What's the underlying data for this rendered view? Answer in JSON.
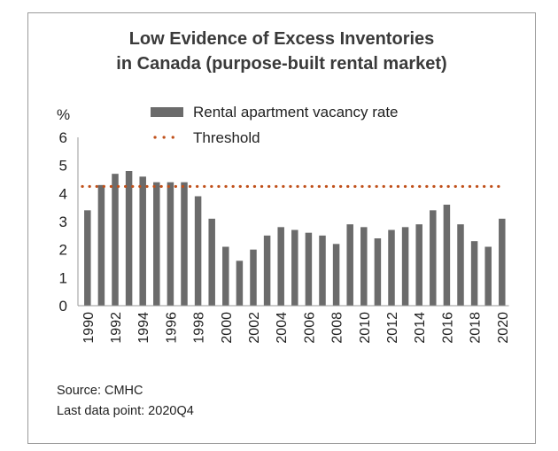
{
  "chart_data": {
    "type": "bar",
    "title": [
      "Low Evidence of Excess Inventories",
      "in Canada (purpose-built rental market)"
    ],
    "ylabel": "%",
    "ylim": [
      0,
      6
    ],
    "yticks": [
      "0",
      "1",
      "2",
      "3",
      "4",
      "5",
      "6"
    ],
    "grid": false,
    "legend_position": "top",
    "categories": [
      "1990",
      "1991",
      "1992",
      "1993",
      "1994",
      "1995",
      "1996",
      "1997",
      "1998",
      "1999",
      "2000",
      "2001",
      "2002",
      "2003",
      "2004",
      "2005",
      "2006",
      "2007",
      "2008",
      "2009",
      "2010",
      "2011",
      "2012",
      "2013",
      "2014",
      "2015",
      "2016",
      "2017",
      "2018",
      "2019",
      "2020"
    ],
    "xtick_labels": [
      "1990",
      "",
      "1992",
      "",
      "1994",
      "",
      "1996",
      "",
      "1998",
      "",
      "2000",
      "",
      "2002",
      "",
      "2004",
      "",
      "2006",
      "",
      "2008",
      "",
      "2010",
      "",
      "2012",
      "",
      "2014",
      "",
      "2016",
      "",
      "2018",
      "",
      "2020"
    ],
    "series": [
      {
        "name": "Rental apartment vacancy rate",
        "kind": "bar",
        "color": "#6b6b6b",
        "values": [
          3.4,
          4.3,
          4.7,
          4.8,
          4.6,
          4.4,
          4.4,
          4.4,
          3.9,
          3.1,
          2.1,
          1.6,
          2.0,
          2.5,
          2.8,
          2.7,
          2.6,
          2.5,
          2.2,
          2.9,
          2.8,
          2.4,
          2.7,
          2.8,
          2.9,
          3.4,
          3.6,
          2.9,
          2.3,
          2.1,
          3.1
        ]
      },
      {
        "name": "Threshold",
        "kind": "dotted-line",
        "color": "#c0501a",
        "value": 4.25
      }
    ]
  },
  "footer": {
    "source": "Source: CMHC",
    "last_point": "Last data point: 2020Q4"
  }
}
